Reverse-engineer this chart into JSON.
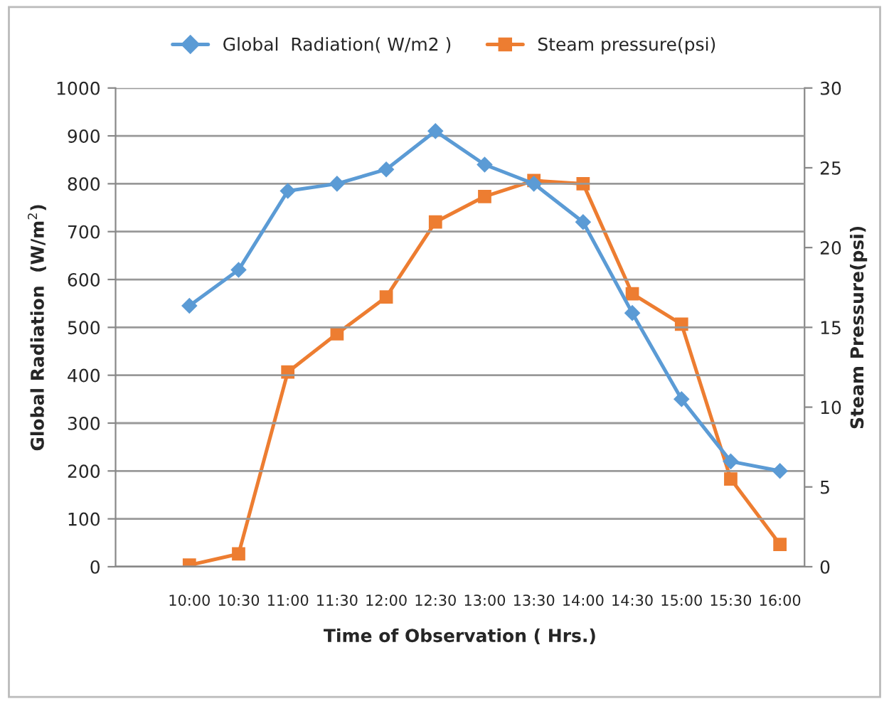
{
  "chart_data": {
    "type": "line",
    "xlabel": "Time of Observation ( Hrs.)",
    "ylabel": "Global Radiation  (W/m$^{2}$)",
    "y2label": "Steam Pressure(psi)",
    "categories": [
      null,
      "10:00",
      "10:30",
      "11:00",
      "11:30",
      "12:00",
      "12:30",
      "13:00",
      "13:30",
      "14:00",
      "14:30",
      "15:00",
      "15:30",
      "16:00"
    ],
    "series": [
      {
        "name": "Global  Radiation( W/m2 )",
        "color": "#5b9bd5",
        "marker": "diamond",
        "values": [
          null,
          545,
          620,
          785,
          800,
          830,
          910,
          840,
          800,
          720,
          530,
          350,
          220,
          200
        ]
      },
      {
        "name": "Steam pressure(psi)",
        "color": "#ed7d31",
        "marker": "square",
        "axis": "y2",
        "values": [
          null,
          0.1,
          0.8,
          12.2,
          14.6,
          16.9,
          21.6,
          23.2,
          24.2,
          24.0,
          17.1,
          15.2,
          5.5,
          1.4
        ]
      }
    ],
    "ylim": [
      0,
      1000
    ],
    "yticks": [
      0,
      100,
      200,
      300,
      400,
      500,
      600,
      700,
      800,
      900,
      1000
    ],
    "y2lim": [
      0,
      30
    ],
    "y2ticks": [
      0,
      5,
      10,
      15,
      20,
      25,
      30
    ],
    "grid": "y",
    "legend": "top",
    "line_style": "solid"
  }
}
